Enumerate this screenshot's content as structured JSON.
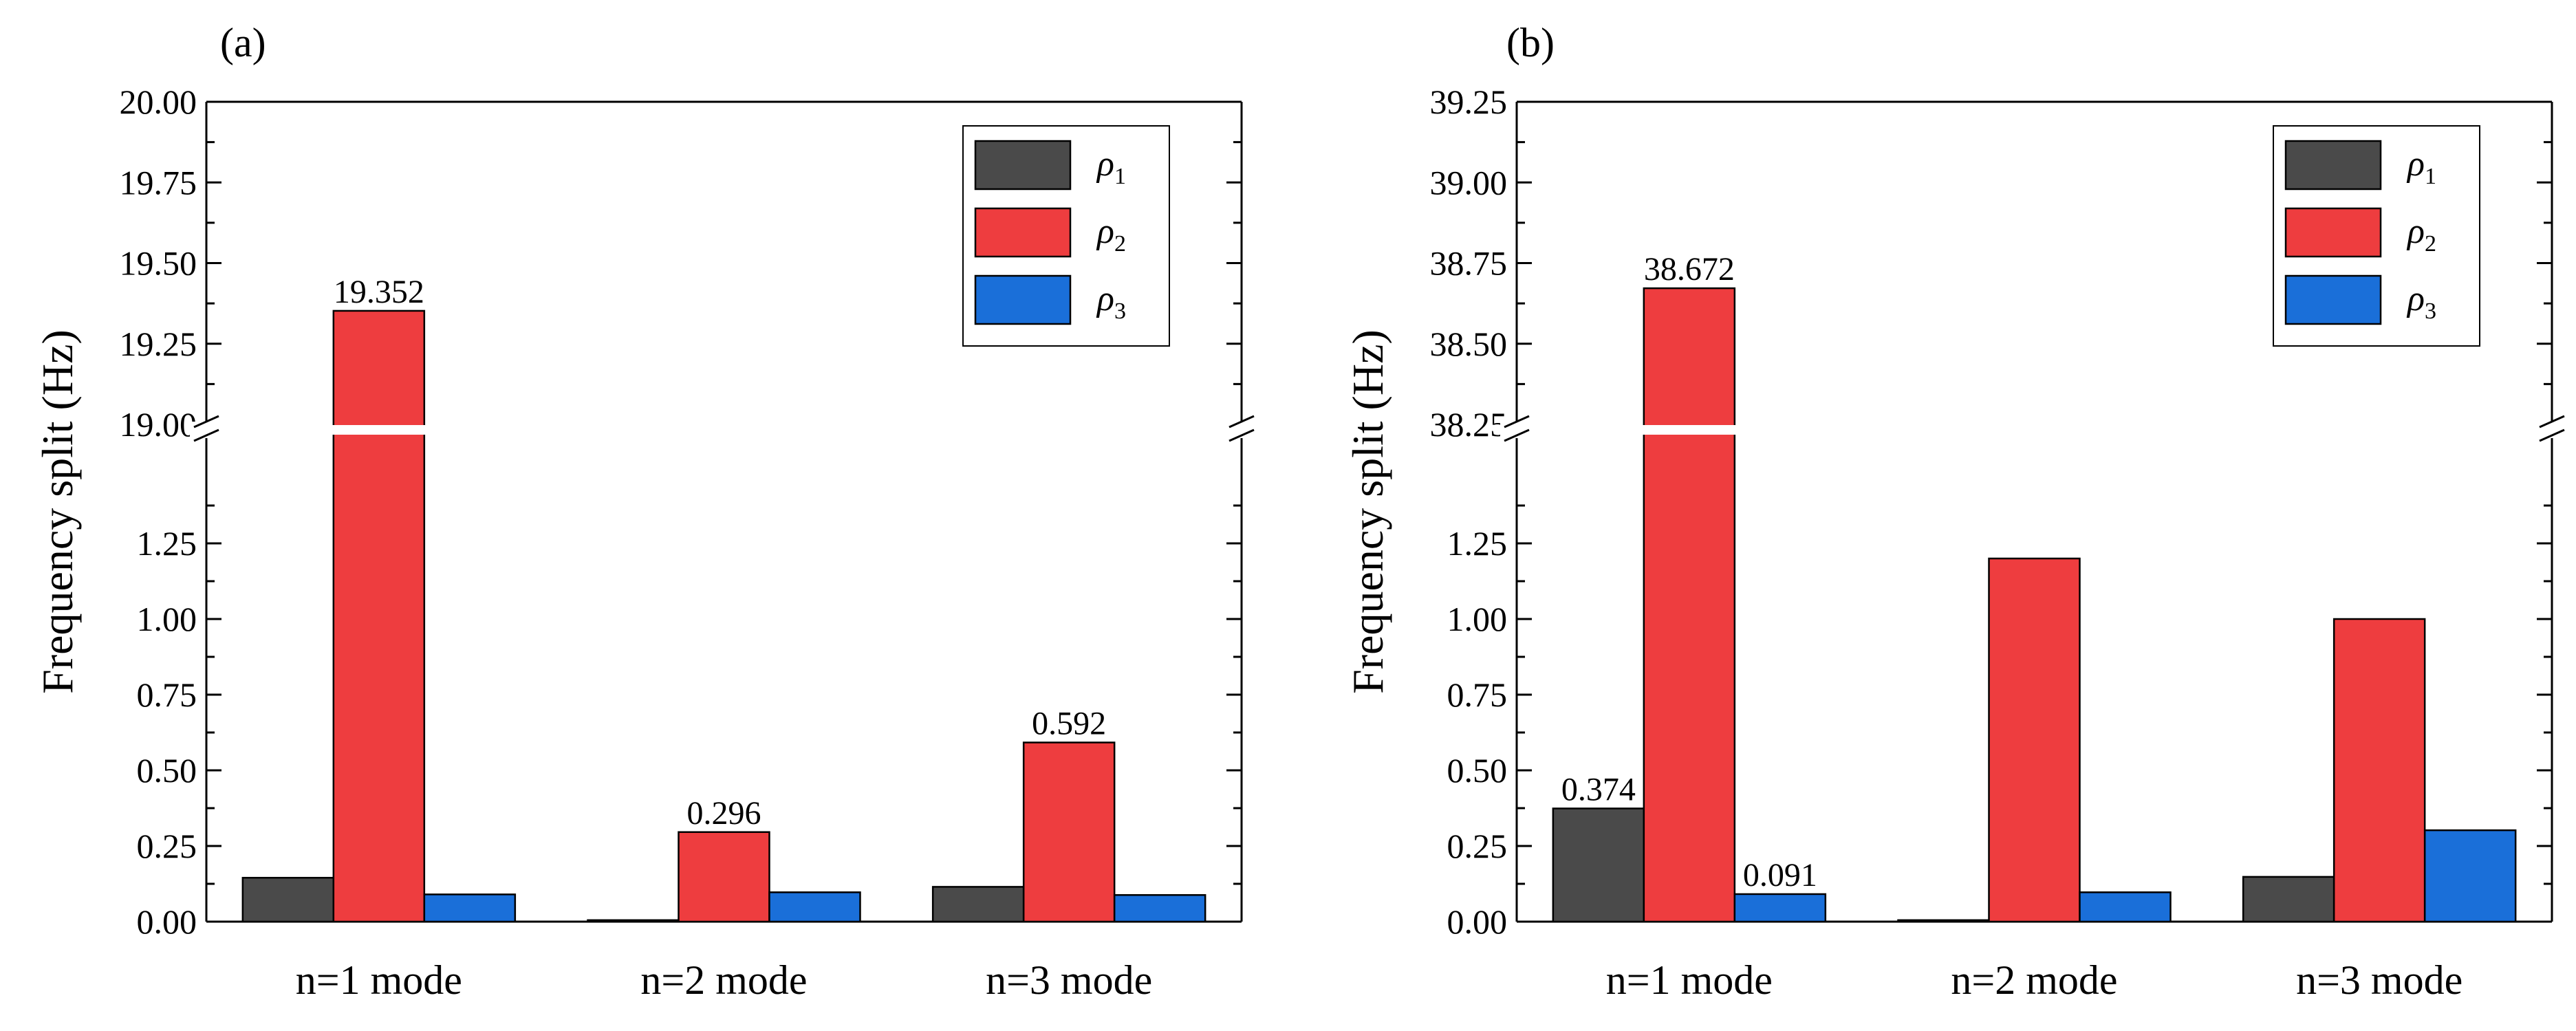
{
  "chart_data": [
    {
      "panel_label": "(a)",
      "type": "bar",
      "categories": [
        "n=1 mode",
        "n=2 mode",
        "n=3 mode"
      ],
      "ylabel": "Frequency split (Hz)",
      "series": [
        {
          "name": "ρ1",
          "name_base": "ρ",
          "name_sub": "1",
          "values": [
            0.145,
            0.005,
            0.115
          ],
          "color": "#4a4a4a"
        },
        {
          "name": "ρ2",
          "name_base": "ρ",
          "name_sub": "2",
          "values": [
            19.352,
            0.296,
            0.592
          ],
          "color": "#ee3d3f"
        },
        {
          "name": "ρ3",
          "name_base": "ρ",
          "name_sub": "3",
          "values": [
            0.09,
            0.097,
            0.088
          ],
          "color": "#1a6fd9"
        }
      ],
      "data_labels": [
        {
          "series": 1,
          "category": 0,
          "text": "19.352"
        },
        {
          "series": 1,
          "category": 1,
          "text": "0.296"
        },
        {
          "series": 1,
          "category": 2,
          "text": "0.592"
        }
      ],
      "axis_break": {
        "lower_range": [
          0,
          1.5
        ],
        "upper_range": [
          19.0,
          20.0
        ]
      },
      "lower_ticks": [
        "0.00",
        "0.25",
        "0.50",
        "0.75",
        "1.00",
        "1.25"
      ],
      "upper_ticks": [
        "19.00",
        "19.25",
        "19.50",
        "19.75",
        "20.00"
      ],
      "legend_position": "top-right"
    },
    {
      "panel_label": "(b)",
      "type": "bar",
      "categories": [
        "n=1 mode",
        "n=2 mode",
        "n=3 mode"
      ],
      "ylabel": "Frequency split (Hz)",
      "series": [
        {
          "name": "ρ1",
          "name_base": "ρ",
          "name_sub": "1",
          "values": [
            0.374,
            0.005,
            0.148
          ],
          "color": "#4a4a4a"
        },
        {
          "name": "ρ2",
          "name_base": "ρ",
          "name_sub": "2",
          "values": [
            38.672,
            1.2,
            1.0
          ],
          "color": "#ee3d3f"
        },
        {
          "name": "ρ3",
          "name_base": "ρ",
          "name_sub": "3",
          "values": [
            0.091,
            0.097,
            0.302
          ],
          "color": "#1a6fd9"
        }
      ],
      "data_labels": [
        {
          "series": 0,
          "category": 0,
          "text": "0.374"
        },
        {
          "series": 1,
          "category": 0,
          "text": "38.672"
        },
        {
          "series": 2,
          "category": 0,
          "text": "0.091"
        }
      ],
      "axis_break": {
        "lower_range": [
          0,
          1.5
        ],
        "upper_range": [
          38.25,
          39.25
        ]
      },
      "lower_ticks": [
        "0.00",
        "0.25",
        "0.50",
        "0.75",
        "1.00",
        "1.25"
      ],
      "upper_ticks": [
        "38.25",
        "38.50",
        "38.75",
        "39.00",
        "39.25"
      ],
      "legend_position": "top-right"
    }
  ]
}
